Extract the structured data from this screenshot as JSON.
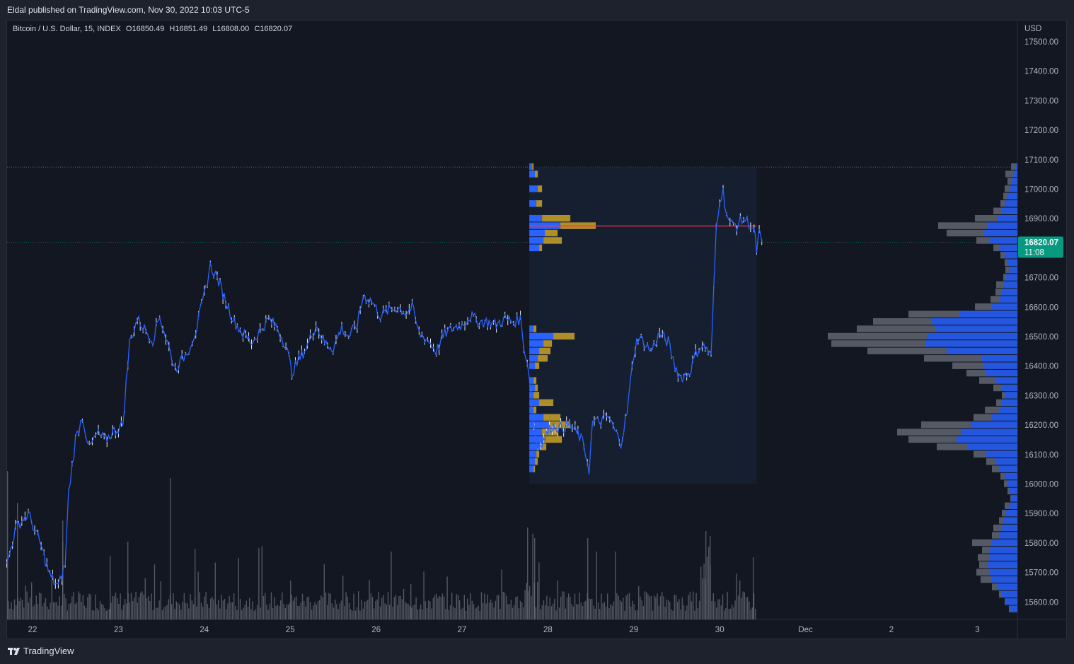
{
  "header": {
    "publisher_text": "Eldal published on TradingView.com, Nov 30, 2022 10:03 UTC-5"
  },
  "legend": {
    "symbol": "Bitcoin / U.S. Dollar, 15, INDEX",
    "open": "O16850.49",
    "high": "H16851.49",
    "low": "L16808.00",
    "close": "C16820.07"
  },
  "price_axis": {
    "currency": "USD",
    "last_price": "16820.07",
    "countdown": "11:08"
  },
  "footer": {
    "brand": "TradingView"
  },
  "colors": {
    "background": "#131722",
    "candle_line": "#2962ff",
    "wick": "#ffffff",
    "volume": "#6a6d78",
    "profile_blue": "#2962ff",
    "profile_gray": "#5d606b",
    "session_profile_gold": "#c9a227",
    "poc_line": "#f23645",
    "last_price_badge": "#089981"
  },
  "chart_data": {
    "type": "line",
    "instrument": "Bitcoin / U.S. Dollar",
    "interval": "15",
    "ylim": [
      15550,
      17550
    ],
    "y_ticks": [
      17500,
      17400,
      17300,
      17200,
      17100,
      17000,
      16900,
      16820.07,
      16700,
      16600,
      16500,
      16400,
      16300,
      16200,
      16100,
      16000,
      15900,
      15800,
      15700,
      15600
    ],
    "y_tick_labels": [
      "17500.00",
      "17400.00",
      "17300.00",
      "17200.00",
      "17100.00",
      "17000.00",
      "16900.00",
      "16820.07",
      "16700.00",
      "16600.00",
      "16500.00",
      "16400.00",
      "16300.00",
      "16200.00",
      "16100.00",
      "16000.00",
      "15900.00",
      "15800.00",
      "15700.00",
      "15600.00"
    ],
    "x_labels": [
      "22",
      "23",
      "24",
      "25",
      "26",
      "27",
      "28",
      "29",
      "30",
      "Dec",
      "2",
      "3"
    ],
    "x_label_days": [
      22,
      23,
      24,
      25,
      26,
      27,
      28,
      29,
      30,
      31,
      32,
      33
    ],
    "x_range": [
      21.7,
      34.5
    ],
    "series": [
      {
        "values": [
          [
            21.7,
            15720
          ],
          [
            21.8,
            15850
          ],
          [
            21.95,
            15900
          ],
          [
            22.1,
            15790
          ],
          [
            22.2,
            15690
          ],
          [
            22.3,
            15650
          ],
          [
            22.38,
            15730
          ],
          [
            22.42,
            15970
          ],
          [
            22.5,
            16150
          ],
          [
            22.58,
            16230
          ],
          [
            22.66,
            16120
          ],
          [
            22.75,
            16170
          ],
          [
            22.85,
            16150
          ],
          [
            22.95,
            16180
          ],
          [
            23.05,
            16200
          ],
          [
            23.13,
            16480
          ],
          [
            23.22,
            16560
          ],
          [
            23.32,
            16520
          ],
          [
            23.4,
            16490
          ],
          [
            23.48,
            16570
          ],
          [
            23.57,
            16480
          ],
          [
            23.66,
            16390
          ],
          [
            23.74,
            16420
          ],
          [
            23.82,
            16460
          ],
          [
            23.9,
            16520
          ],
          [
            24.0,
            16640
          ],
          [
            24.07,
            16740
          ],
          [
            24.15,
            16700
          ],
          [
            24.25,
            16620
          ],
          [
            24.35,
            16550
          ],
          [
            24.45,
            16510
          ],
          [
            24.55,
            16480
          ],
          [
            24.65,
            16520
          ],
          [
            24.75,
            16560
          ],
          [
            24.85,
            16530
          ],
          [
            24.95,
            16470
          ],
          [
            25.02,
            16380
          ],
          [
            25.1,
            16420
          ],
          [
            25.2,
            16470
          ],
          [
            25.3,
            16540
          ],
          [
            25.4,
            16480
          ],
          [
            25.5,
            16460
          ],
          [
            25.6,
            16530
          ],
          [
            25.68,
            16500
          ],
          [
            25.78,
            16540
          ],
          [
            25.85,
            16640
          ],
          [
            25.95,
            16620
          ],
          [
            26.05,
            16570
          ],
          [
            26.15,
            16590
          ],
          [
            26.25,
            16600
          ],
          [
            26.35,
            16580
          ],
          [
            26.42,
            16600
          ],
          [
            26.5,
            16510
          ],
          [
            26.6,
            16490
          ],
          [
            26.7,
            16450
          ],
          [
            26.8,
            16510
          ],
          [
            26.9,
            16530
          ],
          [
            27.0,
            16540
          ],
          [
            27.1,
            16570
          ],
          [
            27.2,
            16550
          ],
          [
            27.3,
            16550
          ],
          [
            27.4,
            16540
          ],
          [
            27.5,
            16560
          ],
          [
            27.6,
            16550
          ],
          [
            27.68,
            16560
          ],
          [
            27.72,
            16470
          ],
          [
            27.78,
            16380
          ],
          [
            27.82,
            16230
          ],
          [
            27.88,
            16130
          ],
          [
            27.95,
            16150
          ],
          [
            28.05,
            16200
          ],
          [
            28.15,
            16190
          ],
          [
            28.25,
            16200
          ],
          [
            28.35,
            16170
          ],
          [
            28.42,
            16130
          ],
          [
            28.48,
            16050
          ],
          [
            28.52,
            16210
          ],
          [
            28.6,
            16210
          ],
          [
            28.7,
            16230
          ],
          [
            28.78,
            16180
          ],
          [
            28.85,
            16140
          ],
          [
            28.92,
            16240
          ],
          [
            29.0,
            16440
          ],
          [
            29.05,
            16500
          ],
          [
            29.12,
            16480
          ],
          [
            29.2,
            16450
          ],
          [
            29.3,
            16510
          ],
          [
            29.4,
            16480
          ],
          [
            29.48,
            16400
          ],
          [
            29.55,
            16360
          ],
          [
            29.65,
            16380
          ],
          [
            29.72,
            16440
          ],
          [
            29.78,
            16470
          ],
          [
            29.85,
            16460
          ],
          [
            29.9,
            16430
          ],
          [
            29.93,
            16650
          ],
          [
            29.96,
            16870
          ],
          [
            30.0,
            16970
          ],
          [
            30.04,
            16990
          ],
          [
            30.08,
            16920
          ],
          [
            30.12,
            16880
          ],
          [
            30.2,
            16880
          ],
          [
            30.28,
            16900
          ],
          [
            30.36,
            16880
          ],
          [
            30.4,
            16860
          ],
          [
            30.43,
            16790
          ],
          [
            30.46,
            16850
          ],
          [
            30.49,
            16820
          ]
        ]
      }
    ],
    "volume_profile_visible_range": {
      "bin_width": 25,
      "rows": [
        [
          17075,
          3,
          6
        ],
        [
          17050,
          5,
          12
        ],
        [
          17025,
          8,
          6
        ],
        [
          17000,
          10,
          8
        ],
        [
          16975,
          14,
          6
        ],
        [
          16950,
          18,
          6
        ],
        [
          16925,
          22,
          12
        ],
        [
          16900,
          28,
          32
        ],
        [
          16875,
          42,
          70
        ],
        [
          16850,
          48,
          52
        ],
        [
          16825,
          40,
          18
        ],
        [
          16800,
          26,
          8
        ],
        [
          16775,
          18,
          6
        ],
        [
          16750,
          14,
          4
        ],
        [
          16725,
          12,
          5
        ],
        [
          16700,
          16,
          4
        ],
        [
          16675,
          20,
          10
        ],
        [
          16650,
          22,
          9
        ],
        [
          16625,
          26,
          12
        ],
        [
          16600,
          36,
          24
        ],
        [
          16575,
          82,
          72
        ],
        [
          16550,
          122,
          82
        ],
        [
          16525,
          115,
          112
        ],
        [
          16500,
          128,
          140
        ],
        [
          16475,
          130,
          133
        ],
        [
          16450,
          100,
          112
        ],
        [
          16425,
          50,
          82
        ],
        [
          16400,
          48,
          44
        ],
        [
          16375,
          44,
          28
        ],
        [
          16350,
          30,
          24
        ],
        [
          16325,
          22,
          12
        ],
        [
          16300,
          18,
          4
        ],
        [
          16275,
          22,
          8
        ],
        [
          16250,
          26,
          20
        ],
        [
          16225,
          36,
          26
        ],
        [
          16200,
          66,
          70
        ],
        [
          16175,
          80,
          90
        ],
        [
          16150,
          86,
          68
        ],
        [
          16125,
          70,
          44
        ],
        [
          16100,
          44,
          18
        ],
        [
          16075,
          30,
          14
        ],
        [
          16050,
          26,
          10
        ],
        [
          16025,
          18,
          6
        ],
        [
          16000,
          14,
          5
        ],
        [
          15975,
          12,
          2
        ],
        [
          15950,
          8,
          2
        ],
        [
          15925,
          12,
          6
        ],
        [
          15900,
          16,
          6
        ],
        [
          15875,
          20,
          6
        ],
        [
          15850,
          22,
          12
        ],
        [
          15825,
          26,
          10
        ],
        [
          15800,
          36,
          28
        ],
        [
          15775,
          40,
          10
        ],
        [
          15750,
          40,
          16
        ],
        [
          15725,
          42,
          12
        ],
        [
          15700,
          40,
          18
        ],
        [
          15675,
          36,
          16
        ],
        [
          15650,
          28,
          8
        ],
        [
          15625,
          22,
          4
        ],
        [
          15600,
          16,
          2
        ],
        [
          15575,
          10,
          2
        ]
      ]
    },
    "session_volume_profile": {
      "x_range": [
        27.8,
        30.43
      ],
      "y_range": [
        16000,
        17075
      ],
      "poc": 16875,
      "bin_width": 25,
      "rows": [
        [
          17075,
          4,
          2
        ],
        [
          17050,
          8,
          4
        ],
        [
          17000,
          12,
          6
        ],
        [
          16950,
          10,
          8
        ],
        [
          16900,
          18,
          40
        ],
        [
          16875,
          44,
          50
        ],
        [
          16850,
          22,
          18
        ],
        [
          16825,
          20,
          26
        ],
        [
          16800,
          14,
          4
        ],
        [
          16525,
          6,
          4
        ],
        [
          16500,
          34,
          30
        ],
        [
          16475,
          20,
          12
        ],
        [
          16450,
          14,
          16
        ],
        [
          16425,
          12,
          14
        ],
        [
          16400,
          8,
          6
        ],
        [
          16350,
          6,
          4
        ],
        [
          16325,
          8,
          4
        ],
        [
          16300,
          6,
          8
        ],
        [
          16275,
          14,
          20
        ],
        [
          16250,
          6,
          4
        ],
        [
          16225,
          20,
          24
        ],
        [
          16200,
          28,
          30
        ],
        [
          16175,
          18,
          22
        ],
        [
          16150,
          20,
          26
        ],
        [
          16125,
          16,
          8
        ],
        [
          16100,
          10,
          4
        ],
        [
          16075,
          8,
          4
        ],
        [
          16050,
          6,
          2
        ]
      ]
    }
  }
}
